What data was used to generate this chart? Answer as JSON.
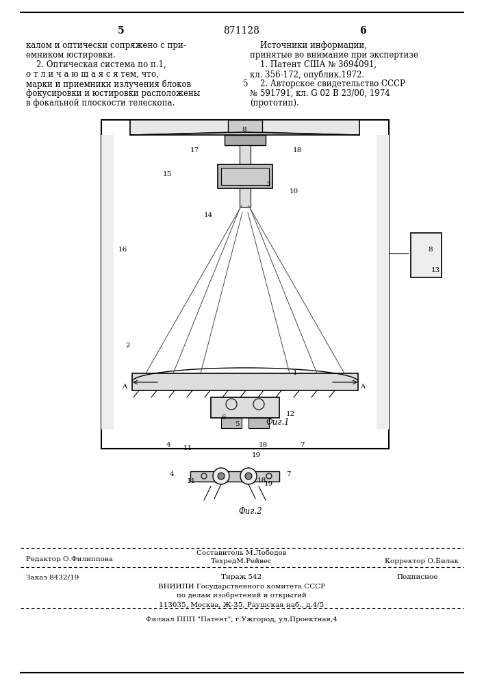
{
  "page_number_left": "5",
  "page_number_center": "871128",
  "page_number_right": "6",
  "left_column_text": [
    "калом и оптически сопряжено с при-",
    "емником юстировки.",
    "    2. Оптическая система по п.1,",
    "о т л и ч а ю щ а я с я тем, что,",
    "марки и приемники излучения блоков",
    "фокусировки и юстировки расположены",
    "в фокальной плоскости телескопа."
  ],
  "right_column_text": [
    "    Источники информации,",
    "принятые во внимание при экспертизе",
    "    1. Патент США № 3694091,",
    "кл. 356-172, опублик.1972.",
    "    2. Авторское свидетельство СССР",
    "№ 591791, кл. G 02 B 23/00, 1974",
    "(прототип)."
  ],
  "right_number_5": "5",
  "footer_line1_left": "Редактор О.Филиппова",
  "footer_line1_center": "Составитель М.Лебедев",
  "footer_line1_center2": "ТехредМ.Рейвес",
  "footer_line1_right": "Корректор О.Билак",
  "footer_line2_left": "Заказ 8432/19",
  "footer_line2_center": "Тираж 542",
  "footer_line2_right": "Подписное",
  "footer_line3": "ВНИИПИ Государственного комитета СССР",
  "footer_line4": "по делам изобретений и открытий",
  "footer_line5": "113035, Москва, Ж-35, Раушская наб., д.4/5",
  "footer_line6": "Филиал ППП \"Патент\", г.Ужгород, ул.Проектная,4",
  "bg_color": "#ffffff",
  "text_color": "#000000"
}
